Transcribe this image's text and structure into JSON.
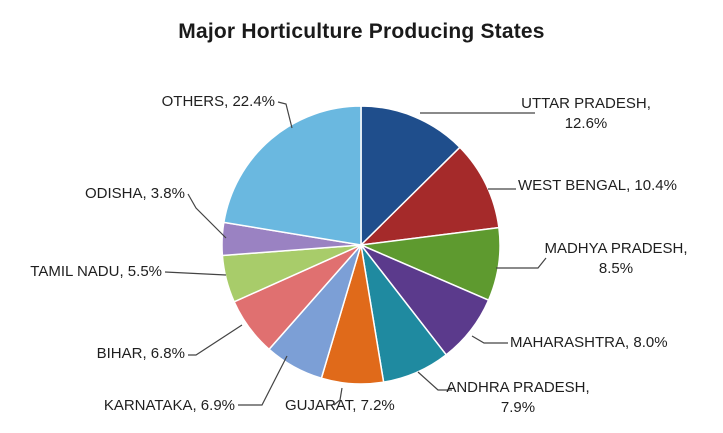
{
  "chart_data": {
    "type": "pie",
    "title": "Major Horticulture Producing States",
    "slices": [
      {
        "label": "UTTAR PRADESH",
        "value": 12.6,
        "display": "12.6%",
        "color": "#1f4e8c"
      },
      {
        "label": "WEST BENGAL",
        "value": 10.4,
        "display": "10.4%",
        "color": "#a52a2a"
      },
      {
        "label": "MADHYA PRADESH",
        "value": 8.5,
        "display": "8.5%",
        "color": "#5e9a2f"
      },
      {
        "label": "MAHARASHTRA",
        "value": 8.0,
        "display": "8.0%",
        "color": "#5b3a8c"
      },
      {
        "label": "ANDHRA PRADESH",
        "value": 7.9,
        "display": "7.9%",
        "color": "#1f8aa0"
      },
      {
        "label": "GUJARAT",
        "value": 7.2,
        "display": "7.2%",
        "color": "#e06a1a"
      },
      {
        "label": "KARNATAKA",
        "value": 6.9,
        "display": "6.9%",
        "color": "#7c9fd6"
      },
      {
        "label": "BIHAR",
        "value": 6.8,
        "display": "6.8%",
        "color": "#e07070"
      },
      {
        "label": "TAMIL NADU",
        "value": 5.5,
        "display": "5.5%",
        "color": "#a8cc6a"
      },
      {
        "label": "ODISHA",
        "value": 3.8,
        "display": "3.8%",
        "color": "#9a82c2"
      },
      {
        "label": "OTHERS",
        "value": 22.4,
        "display": "22.4%",
        "color": "#6ab8e0"
      }
    ],
    "legend": "none"
  }
}
